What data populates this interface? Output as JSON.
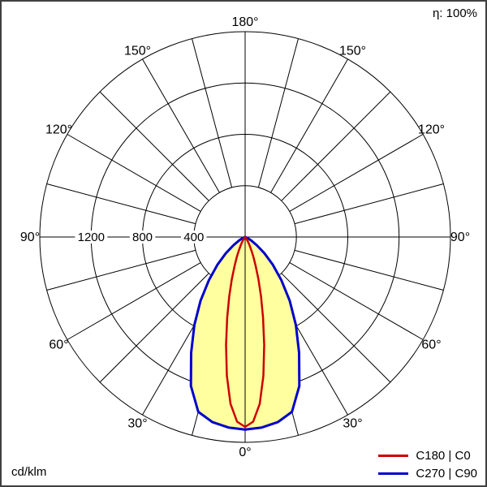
{
  "header": {
    "efficiency_label": "η: 100%"
  },
  "footer": {
    "unit_label": "cd/klm"
  },
  "legend": {
    "items": [
      {
        "label": "C180 | C0",
        "color": "#cc0000"
      },
      {
        "label": "C270 | C90",
        "color": "#0000cc"
      }
    ]
  },
  "chart_data": {
    "type": "polar",
    "subtype": "luminous_intensity_distribution",
    "unit": "cd/klm",
    "efficiency_percent": 100,
    "grid": {
      "spoke_step_deg": 15,
      "angle_label_step_deg": 30
    },
    "gamma_axis": {
      "labels": [
        "0°",
        "30°",
        "60°",
        "90°",
        "120°",
        "150°",
        "180°"
      ]
    },
    "radial_axis": {
      "max": 1600,
      "tick_step": 400,
      "ticks": [
        {
          "value": 400,
          "label": "400"
        },
        {
          "value": 800,
          "label": "800"
        },
        {
          "value": 1200,
          "label": "1200"
        }
      ]
    },
    "fill_color": "#ffffa0",
    "series": [
      {
        "name": "C180 | C0",
        "color": "#cc0000",
        "fill": "none",
        "gamma_deg": [
          0,
          2.5,
          5,
          7.5,
          10,
          12.5,
          15,
          17.5,
          20,
          22.5,
          25,
          27.5,
          30,
          32.5,
          35,
          37.5,
          40,
          45,
          50,
          55,
          60,
          70,
          80,
          90
        ],
        "values": [
          1480,
          1440,
          1305,
          1090,
          855,
          645,
          480,
          345,
          240,
          170,
          117,
          80,
          54,
          37,
          23,
          15,
          9,
          3,
          1,
          0,
          0,
          0,
          0,
          0
        ]
      },
      {
        "name": "C270 | C90",
        "color": "#0000cc",
        "fill": "#ffffa0",
        "gamma_deg": [
          0,
          5,
          10,
          15,
          20,
          25,
          30,
          35,
          40,
          45,
          50,
          55,
          60,
          65,
          70,
          75,
          80,
          85,
          90
        ],
        "values": [
          1500,
          1490,
          1465,
          1410,
          1235,
          995,
          790,
          605,
          440,
          305,
          195,
          110,
          55,
          20,
          6,
          1,
          0,
          0,
          0
        ]
      }
    ]
  }
}
